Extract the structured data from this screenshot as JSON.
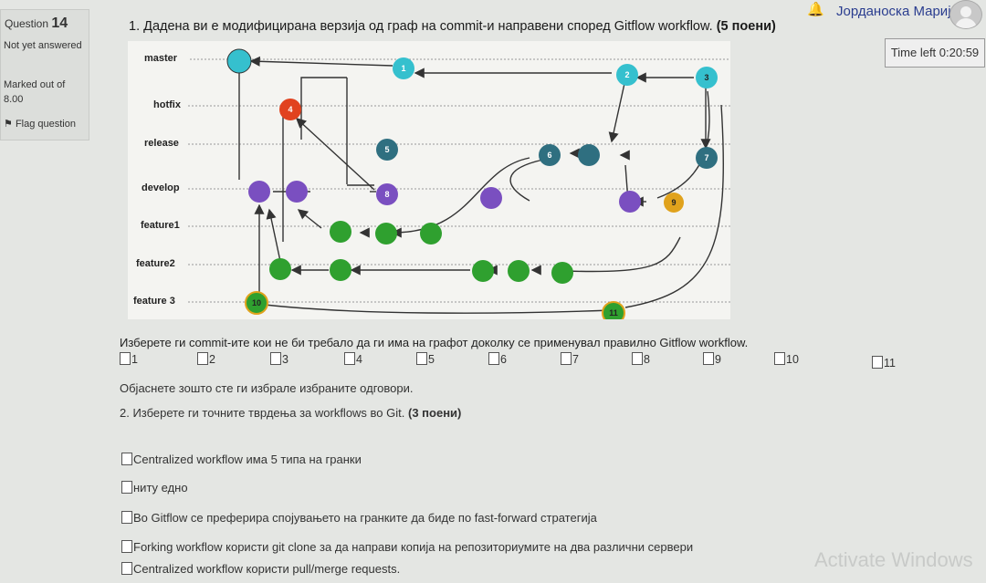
{
  "header": {
    "user_name": "Јорданоска Марија",
    "bell_icon": "bell-icon",
    "avatar_icon": "user-avatar-icon"
  },
  "question_info": {
    "label": "Question",
    "number": "14",
    "status": "Not yet answered",
    "marked": "Marked out of 8.00",
    "flag": "Flag question"
  },
  "timer": {
    "text": "Time left 0:20:59"
  },
  "q1": {
    "title_main": "1. Дадена ви е модифицирана верзија од граф на commit-и направени според Gitflow workflow.",
    "title_points": "(5 поени)",
    "graph": {
      "branches": [
        "master",
        "hotfix",
        "release",
        "develop",
        "feature1",
        "feature2",
        "feature 3"
      ],
      "commit_labels": [
        "1",
        "2",
        "3",
        "4",
        "5",
        "6",
        "7",
        "8",
        "9",
        "10",
        "11"
      ]
    },
    "subquestion": "Изберете ги commit-ите кои не би требало да ги има на графот доколку се применувал правилно Gitflow workflow.",
    "options": [
      "1",
      "2",
      "3",
      "4",
      "5",
      "6",
      "7",
      "8",
      "9",
      "10",
      "11"
    ],
    "explain": "Објаснете зошто сте ги избрале избраните одговори."
  },
  "q2": {
    "title_main": "2. Изберете ги точните тврдења за workflows во Git.",
    "title_points": "(3 поени)",
    "statements": [
      "Centralized workflow има 5 типа на гранки",
      "ниту едно",
      "Во Gitflow се преферира спојувањето на гранките да биде по fast-forward стратегија",
      "Forking workflow користи git clone за да направи копија на репозиториумите на два различни сервери",
      "Centralized workflow користи pull/merge requests."
    ]
  },
  "watermark": "Activate Windows",
  "colors": {
    "master": "#35c0ce",
    "hotfix": "#e1421f",
    "release": "#2f6f80",
    "develop": "#7a4fc0",
    "feature": "#2fa02f"
  }
}
